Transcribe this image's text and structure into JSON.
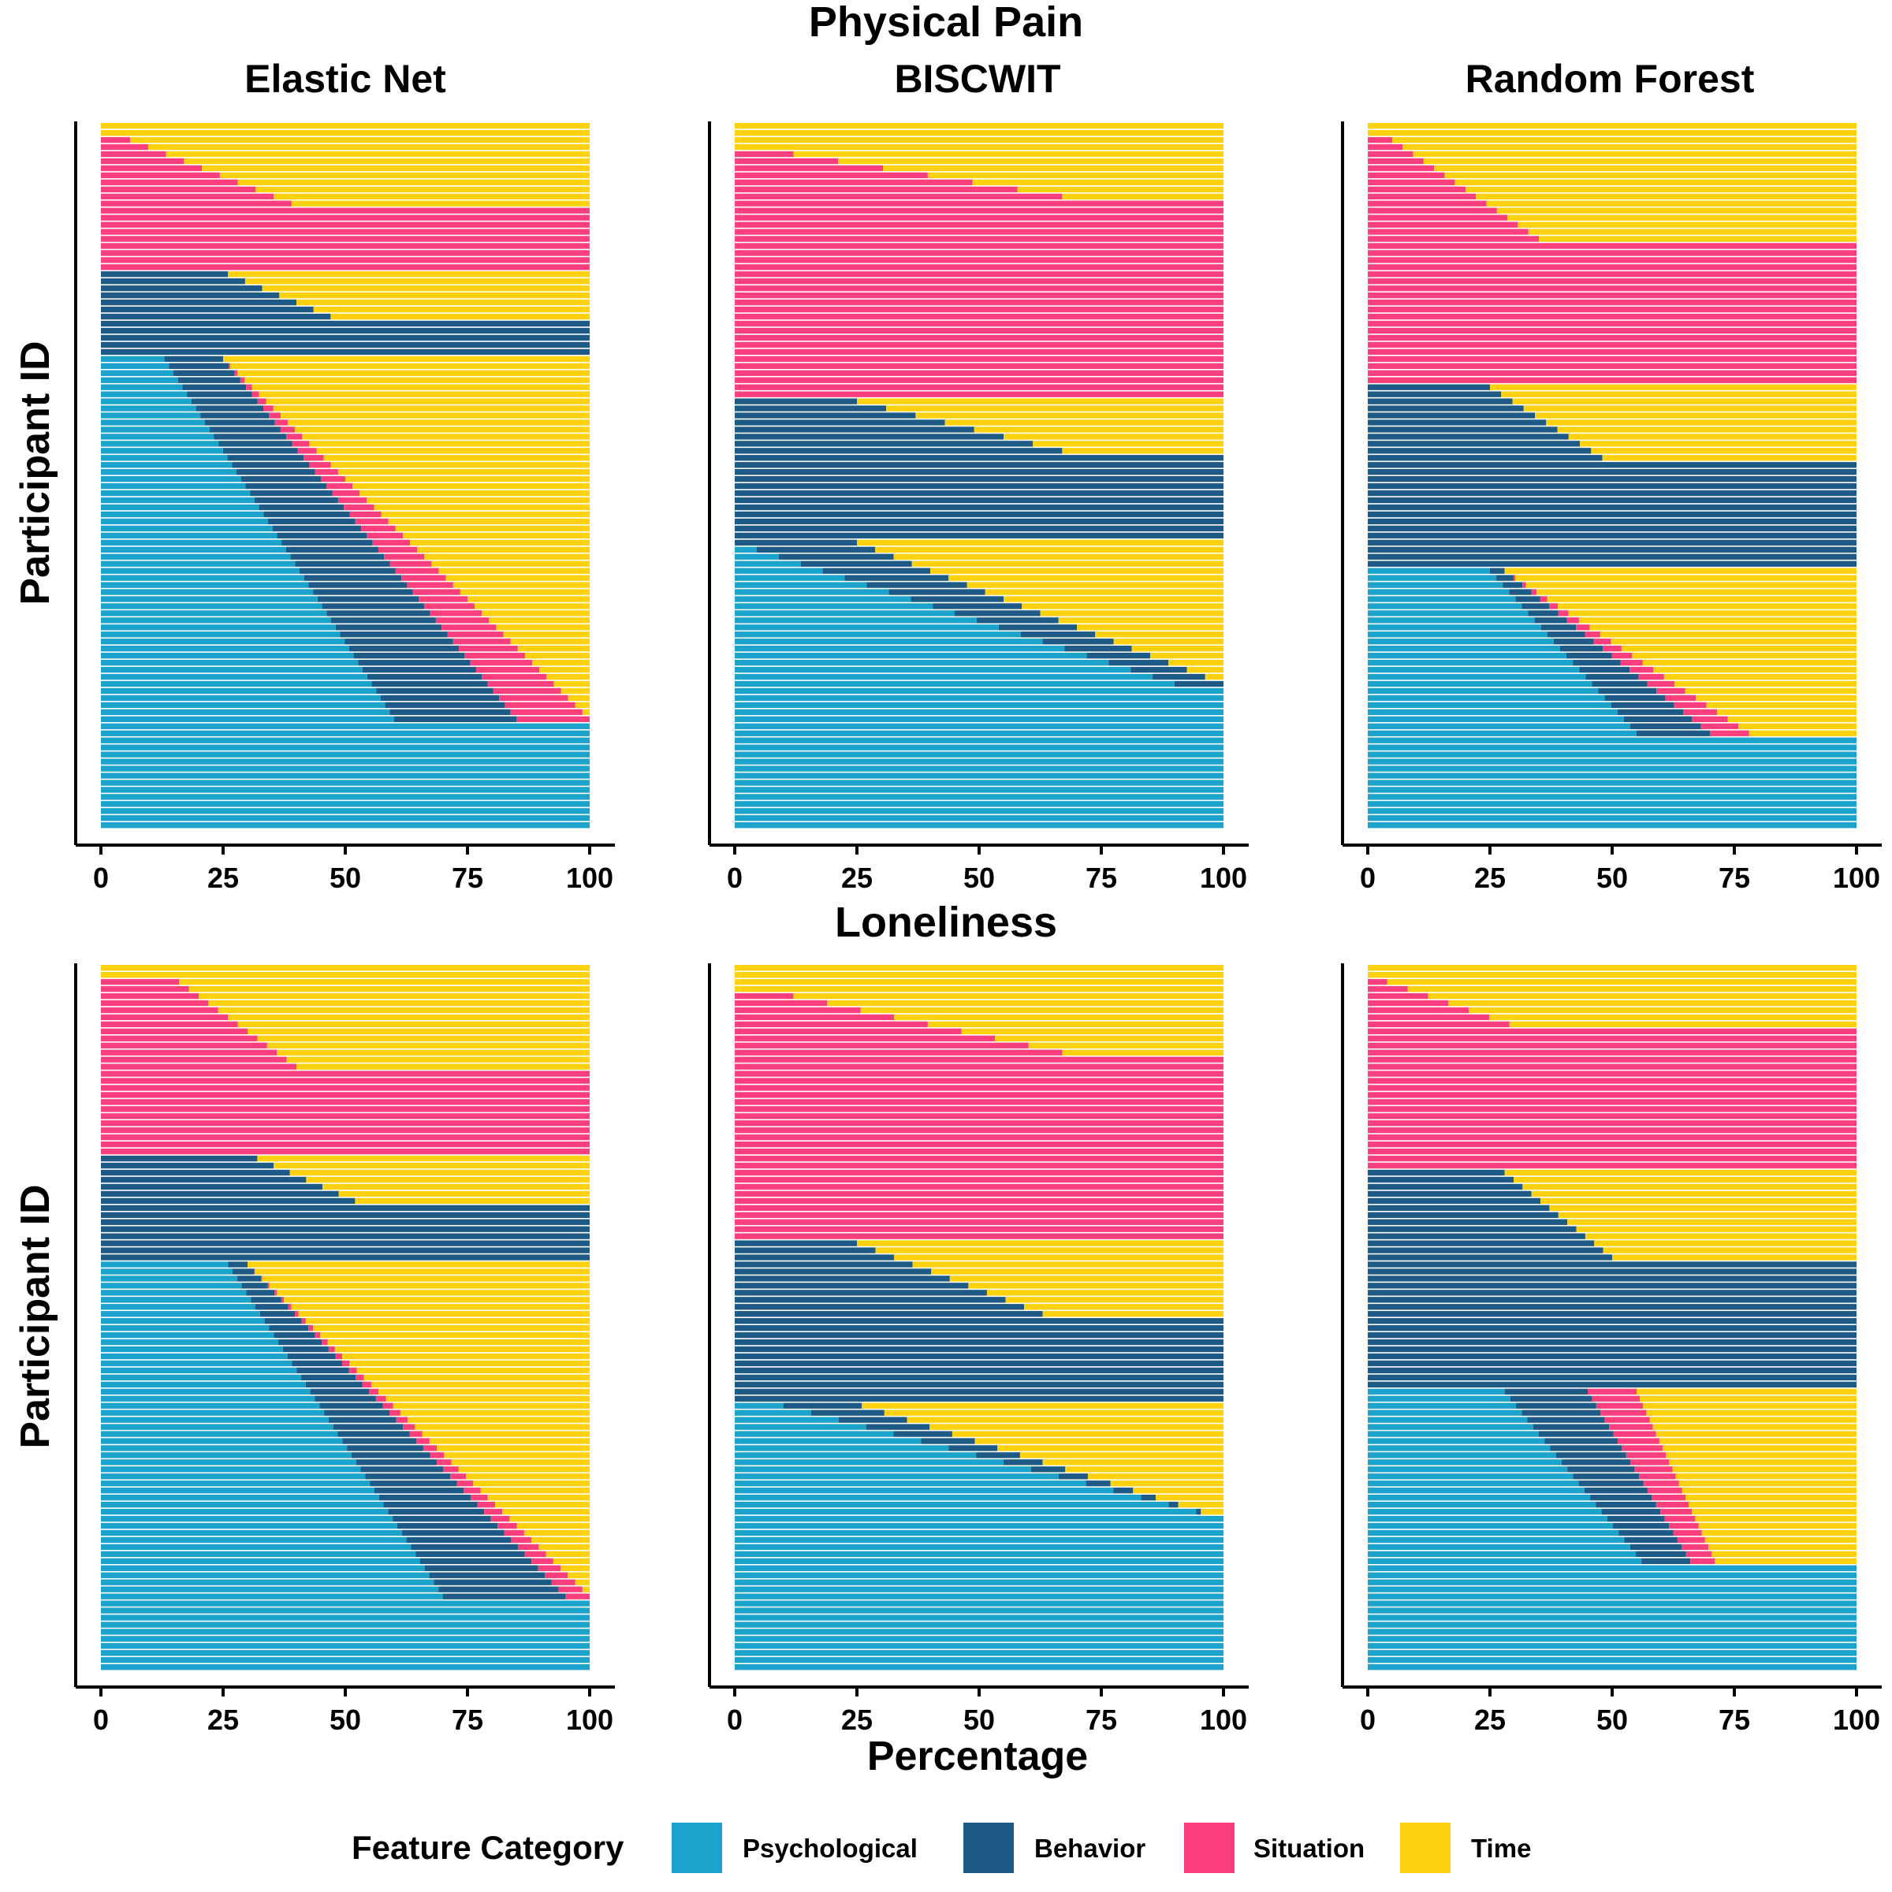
{
  "figure": {
    "row_titles": [
      "Physical Pain",
      "Loneliness"
    ],
    "model_titles": [
      "Elastic Net",
      "BISCWIT",
      "Random Forest"
    ],
    "y_axis_label": "Participant ID",
    "x_axis_label": "Percentage"
  },
  "legend": {
    "title": "Feature Category",
    "items": [
      {
        "label": "Psychological",
        "color": "#1ba3cc"
      },
      {
        "label": "Behavior",
        "color": "#1d5a86"
      },
      {
        "label": "Situation",
        "color": "#fb3f7c"
      },
      {
        "label": "Time",
        "color": "#fdd10d"
      }
    ]
  },
  "chart_data": [
    {
      "type": "bar",
      "orientation": "horizontal",
      "stacked": true,
      "outcome": "Physical Pain",
      "model": "Elastic Net",
      "xlabel": "Percentage",
      "ylabel": "Participant ID",
      "xlim": [
        0,
        100
      ],
      "x_ticks": [
        0,
        25,
        50,
        75,
        100
      ],
      "participants": 100,
      "series": [
        "Psychological",
        "Behavior",
        "Situation",
        "Time"
      ],
      "segments": [
        {
          "rows": [
            1,
            2
          ],
          "Psychological": 0,
          "Behavior": 0,
          "Situation": 0,
          "Time": 100
        },
        {
          "rows": [
            3,
            12
          ],
          "Psychological": 0,
          "Behavior": 0,
          "Situation": [
            6,
            39
          ],
          "Time": [
            94,
            61
          ]
        },
        {
          "rows": [
            13,
            21
          ],
          "Psychological": 0,
          "Behavior": 0,
          "Situation": 100,
          "Time": 0
        },
        {
          "rows": [
            22,
            28
          ],
          "Psychological": 0,
          "Behavior": [
            26,
            47
          ],
          "Situation": 0,
          "Time": [
            74,
            53
          ]
        },
        {
          "rows": [
            29,
            33
          ],
          "Psychological": 0,
          "Behavior": 100,
          "Situation": 0,
          "Time": 0
        },
        {
          "rows": [
            34,
            85
          ],
          "Psychological": [
            13,
            60
          ],
          "Behavior": [
            12,
            25
          ],
          "Situation": [
            0,
            15
          ],
          "Time": [
            75,
            0
          ]
        },
        {
          "rows": [
            86,
            100
          ],
          "Psychological": 100,
          "Behavior": 0,
          "Situation": 0,
          "Time": 0
        }
      ]
    },
    {
      "type": "bar",
      "orientation": "horizontal",
      "stacked": true,
      "outcome": "Physical Pain",
      "model": "BISCWIT",
      "xlabel": "Percentage",
      "ylabel": "Participant ID",
      "xlim": [
        0,
        100
      ],
      "x_ticks": [
        0,
        25,
        50,
        75,
        100
      ],
      "participants": 100,
      "series": [
        "Psychological",
        "Behavior",
        "Situation",
        "Time"
      ],
      "segments": [
        {
          "rows": [
            1,
            4
          ],
          "Psychological": 0,
          "Behavior": 0,
          "Situation": 0,
          "Time": 100
        },
        {
          "rows": [
            5,
            11
          ],
          "Psychological": 0,
          "Behavior": 0,
          "Situation": [
            12,
            67
          ],
          "Time": [
            88,
            33
          ]
        },
        {
          "rows": [
            12,
            39
          ],
          "Psychological": 0,
          "Behavior": 0,
          "Situation": 100,
          "Time": 0
        },
        {
          "rows": [
            40,
            47
          ],
          "Psychological": 0,
          "Behavior": [
            25,
            67
          ],
          "Situation": 0,
          "Time": [
            75,
            33
          ]
        },
        {
          "rows": [
            48,
            59
          ],
          "Psychological": 0,
          "Behavior": 100,
          "Situation": 0,
          "Time": 0
        },
        {
          "rows": [
            60,
            80
          ],
          "Psychological": [
            0,
            90
          ],
          "Behavior": [
            25,
            10
          ],
          "Situation": [
            0,
            0
          ],
          "Time": [
            75,
            0
          ]
        },
        {
          "rows": [
            81,
            100
          ],
          "Psychological": 100,
          "Behavior": 0,
          "Situation": 0,
          "Time": 0
        }
      ]
    },
    {
      "type": "bar",
      "orientation": "horizontal",
      "stacked": true,
      "outcome": "Physical Pain",
      "model": "Random Forest",
      "xlabel": "Percentage",
      "ylabel": "Participant ID",
      "xlim": [
        0,
        100
      ],
      "x_ticks": [
        0,
        25,
        50,
        75,
        100
      ],
      "participants": 100,
      "series": [
        "Psychological",
        "Behavior",
        "Situation",
        "Time"
      ],
      "segments": [
        {
          "rows": [
            1,
            2
          ],
          "Psychological": 0,
          "Behavior": 0,
          "Situation": 0,
          "Time": 100
        },
        {
          "rows": [
            3,
            17
          ],
          "Psychological": 0,
          "Behavior": 0,
          "Situation": [
            5,
            35
          ],
          "Time": [
            95,
            65
          ]
        },
        {
          "rows": [
            18,
            37
          ],
          "Psychological": 0,
          "Behavior": 0,
          "Situation": 100,
          "Time": 0
        },
        {
          "rows": [
            38,
            48
          ],
          "Psychological": 0,
          "Behavior": [
            25,
            48
          ],
          "Situation": 0,
          "Time": [
            75,
            52
          ]
        },
        {
          "rows": [
            49,
            63
          ],
          "Psychological": 0,
          "Behavior": 100,
          "Situation": 0,
          "Time": 0
        },
        {
          "rows": [
            64,
            87
          ],
          "Psychological": [
            25,
            55
          ],
          "Behavior": [
            3,
            15
          ],
          "Situation": [
            0,
            8
          ],
          "Time": [
            72,
            22
          ]
        },
        {
          "rows": [
            88,
            100
          ],
          "Psychological": 100,
          "Behavior": 0,
          "Situation": 0,
          "Time": 0
        }
      ]
    },
    {
      "type": "bar",
      "orientation": "horizontal",
      "stacked": true,
      "outcome": "Loneliness",
      "model": "Elastic Net",
      "xlabel": "Percentage",
      "ylabel": "Participant ID",
      "xlim": [
        0,
        100
      ],
      "x_ticks": [
        0,
        25,
        50,
        75,
        100
      ],
      "participants": 100,
      "series": [
        "Psychological",
        "Behavior",
        "Situation",
        "Time"
      ],
      "segments": [
        {
          "rows": [
            1,
            2
          ],
          "Psychological": 0,
          "Behavior": 0,
          "Situation": 0,
          "Time": 100
        },
        {
          "rows": [
            3,
            15
          ],
          "Psychological": 0,
          "Behavior": 0,
          "Situation": [
            16,
            40
          ],
          "Time": [
            84,
            60
          ]
        },
        {
          "rows": [
            16,
            27
          ],
          "Psychological": 0,
          "Behavior": 0,
          "Situation": 100,
          "Time": 0
        },
        {
          "rows": [
            28,
            34
          ],
          "Psychological": 0,
          "Behavior": [
            32,
            52
          ],
          "Situation": 0,
          "Time": [
            68,
            48
          ]
        },
        {
          "rows": [
            35,
            42
          ],
          "Psychological": 0,
          "Behavior": 100,
          "Situation": 0,
          "Time": 0
        },
        {
          "rows": [
            43,
            90
          ],
          "Psychological": [
            26,
            70
          ],
          "Behavior": [
            4,
            25
          ],
          "Situation": [
            0,
            5
          ],
          "Time": [
            70,
            0
          ]
        },
        {
          "rows": [
            91,
            100
          ],
          "Psychological": 100,
          "Behavior": 0,
          "Situation": 0,
          "Time": 0
        }
      ]
    },
    {
      "type": "bar",
      "orientation": "horizontal",
      "stacked": true,
      "outcome": "Loneliness",
      "model": "BISCWIT",
      "xlabel": "Percentage",
      "ylabel": "Participant ID",
      "xlim": [
        0,
        100
      ],
      "x_ticks": [
        0,
        25,
        50,
        75,
        100
      ],
      "participants": 100,
      "series": [
        "Psychological",
        "Behavior",
        "Situation",
        "Time"
      ],
      "segments": [
        {
          "rows": [
            1,
            4
          ],
          "Psychological": 0,
          "Behavior": 0,
          "Situation": 0,
          "Time": 100
        },
        {
          "rows": [
            5,
            13
          ],
          "Psychological": 0,
          "Behavior": 0,
          "Situation": [
            12,
            67
          ],
          "Time": [
            88,
            33
          ]
        },
        {
          "rows": [
            14,
            39
          ],
          "Psychological": 0,
          "Behavior": 0,
          "Situation": 100,
          "Time": 0
        },
        {
          "rows": [
            40,
            50
          ],
          "Psychological": 0,
          "Behavior": [
            25,
            63
          ],
          "Situation": 0,
          "Time": [
            75,
            37
          ]
        },
        {
          "rows": [
            51,
            62
          ],
          "Psychological": 0,
          "Behavior": 100,
          "Situation": 0,
          "Time": 0
        },
        {
          "rows": [
            63,
            79
          ],
          "Psychological": [
            10,
            100
          ],
          "Behavior": [
            16,
            0
          ],
          "Situation": [
            0,
            0
          ],
          "Time": [
            74,
            0
          ]
        },
        {
          "rows": [
            80,
            100
          ],
          "Psychological": 100,
          "Behavior": 0,
          "Situation": 0,
          "Time": 0
        }
      ]
    },
    {
      "type": "bar",
      "orientation": "horizontal",
      "stacked": true,
      "outcome": "Loneliness",
      "model": "Random Forest",
      "xlabel": "Percentage",
      "ylabel": "Participant ID",
      "xlim": [
        0,
        100
      ],
      "x_ticks": [
        0,
        25,
        50,
        75,
        100
      ],
      "participants": 100,
      "series": [
        "Psychological",
        "Behavior",
        "Situation",
        "Time"
      ],
      "segments": [
        {
          "rows": [
            1,
            2
          ],
          "Psychological": 0,
          "Behavior": 0,
          "Situation": 0,
          "Time": 100
        },
        {
          "rows": [
            3,
            9
          ],
          "Psychological": 0,
          "Behavior": 0,
          "Situation": [
            4,
            29
          ],
          "Time": [
            96,
            71
          ]
        },
        {
          "rows": [
            10,
            29
          ],
          "Psychological": 0,
          "Behavior": 0,
          "Situation": 100,
          "Time": 0
        },
        {
          "rows": [
            30,
            42
          ],
          "Psychological": 0,
          "Behavior": [
            28,
            50
          ],
          "Situation": 0,
          "Time": [
            72,
            50
          ]
        },
        {
          "rows": [
            43,
            60
          ],
          "Psychological": 0,
          "Behavior": 100,
          "Situation": 0,
          "Time": 0
        },
        {
          "rows": [
            61,
            85
          ],
          "Psychological": [
            28,
            56
          ],
          "Behavior": [
            17,
            10
          ],
          "Situation": [
            10,
            5
          ],
          "Time": [
            45,
            29
          ]
        },
        {
          "rows": [
            86,
            100
          ],
          "Psychological": 100,
          "Behavior": 0,
          "Situation": 0,
          "Time": 0
        }
      ]
    }
  ]
}
